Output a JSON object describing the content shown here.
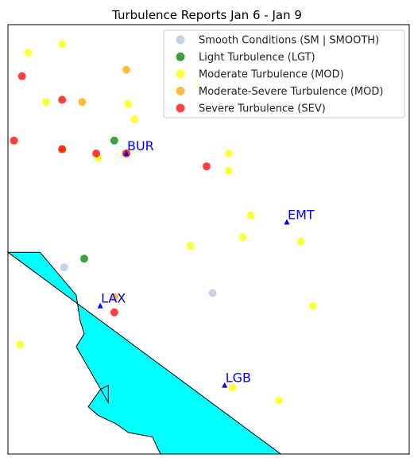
{
  "chart_data": {
    "type": "scatter",
    "title": "Turbulence Reports Jan 6 - Jan 9",
    "xlabel": "",
    "ylabel": "",
    "xlim": [
      0,
      100
    ],
    "ylim": [
      0,
      100
    ],
    "grid": false,
    "legend_position": "top-right",
    "colors": {
      "land": "#00ffff",
      "airport": "#0000ff"
    },
    "series": [
      {
        "name": "Smooth Conditions (SM | SMOOTH)",
        "color": "#b0c4de",
        "points": [
          {
            "x": 14,
            "y": 43.5
          },
          {
            "x": 51,
            "y": 37.5
          }
        ]
      },
      {
        "name": "Light Turbulence (LGT)",
        "color": "#008000",
        "points": [
          {
            "x": 19,
            "y": 45.5
          },
          {
            "x": 26.5,
            "y": 73
          }
        ]
      },
      {
        "name": "Moderate Turbulence (MOD)",
        "color": "#ffff00",
        "points": [
          {
            "x": 5,
            "y": 93.5
          },
          {
            "x": 13.5,
            "y": 95.5
          },
          {
            "x": 9.5,
            "y": 82
          },
          {
            "x": 30,
            "y": 81.5
          },
          {
            "x": 31.5,
            "y": 78
          },
          {
            "x": 47,
            "y": 86
          },
          {
            "x": 22.5,
            "y": 69
          },
          {
            "x": 55,
            "y": 70
          },
          {
            "x": 55,
            "y": 66
          },
          {
            "x": 60.5,
            "y": 55.5
          },
          {
            "x": 58.5,
            "y": 50.5
          },
          {
            "x": 45.5,
            "y": 48.5
          },
          {
            "x": 73,
            "y": 49.5
          },
          {
            "x": 76,
            "y": 34.5
          },
          {
            "x": 3,
            "y": 25.5
          },
          {
            "x": 56,
            "y": 15.5
          },
          {
            "x": 67.5,
            "y": 12.5
          }
        ]
      },
      {
        "name": "Moderate-Severe Turbulence (MOD)",
        "color": "#ffa500",
        "points": [
          {
            "x": 29.5,
            "y": 89.5
          },
          {
            "x": 18.5,
            "y": 82
          },
          {
            "x": 13.5,
            "y": 71
          },
          {
            "x": 29.5,
            "y": 70
          },
          {
            "x": 26.5,
            "y": 36.5
          }
        ]
      },
      {
        "name": "Severe Turbulence (SEV)",
        "color": "#ff0000",
        "points": [
          {
            "x": 3.5,
            "y": 88
          },
          {
            "x": 13.5,
            "y": 82.5
          },
          {
            "x": 1.5,
            "y": 73
          },
          {
            "x": 13.5,
            "y": 71
          },
          {
            "x": 22,
            "y": 70
          },
          {
            "x": 29.5,
            "y": 70
          },
          {
            "x": 49.5,
            "y": 67
          },
          {
            "x": 26.5,
            "y": 33
          }
        ]
      }
    ],
    "airports": [
      {
        "label": "BUR",
        "x": 29.5,
        "y": 70
      },
      {
        "label": "EMT",
        "x": 69.5,
        "y": 54
      },
      {
        "label": "LAX",
        "x": 23,
        "y": 34.5
      },
      {
        "label": "LGB",
        "x": 54,
        "y": 16
      }
    ],
    "coastline": [
      [
        0,
        47
      ],
      [
        8,
        47
      ],
      [
        17,
        37
      ],
      [
        18,
        31
      ],
      [
        19,
        28
      ],
      [
        17,
        25
      ],
      [
        25,
        12
      ],
      [
        25,
        16
      ],
      [
        23,
        15
      ],
      [
        20,
        11
      ],
      [
        22.5,
        9
      ],
      [
        27,
        7
      ],
      [
        30,
        5
      ],
      [
        36,
        4
      ],
      [
        38,
        0
      ],
      [
        68,
        0
      ]
    ]
  }
}
